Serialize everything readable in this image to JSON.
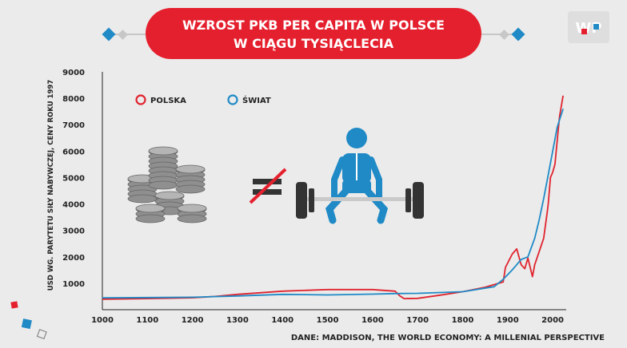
{
  "header": {
    "title_line1": "WZROST PKB PER CAPITA W POLSCE",
    "title_line2": "W CIĄGU TYSIĄCLECIA"
  },
  "brand": {
    "logo_text": "WP",
    "color": "#e5202e"
  },
  "source": "DANE: MADDISON, THE WORLD ECONOMY: A MILLENIAL PERSPECTIVE",
  "icons": [
    "coins-stack-icon",
    "not-equal-icon",
    "weightlifter-icon"
  ],
  "chart_data": {
    "type": "line",
    "ylabel": "USD WG. PARYTETU SIŁY NABYWCZEJ, CENY ROKU 1997",
    "xlim": [
      1000,
      2030
    ],
    "ylim": [
      0,
      9000
    ],
    "xticks": [
      1000,
      1100,
      1200,
      1300,
      1400,
      1500,
      1600,
      1700,
      1800,
      1900,
      2000
    ],
    "yticks": [
      1000,
      2000,
      3000,
      4000,
      5000,
      6000,
      7000,
      8000,
      9000
    ],
    "grid": false,
    "legend_placement": "top-left",
    "series": [
      {
        "name": "POLSKA",
        "color": "#e0232e",
        "points": [
          [
            1000,
            400
          ],
          [
            1100,
            420
          ],
          [
            1200,
            450
          ],
          [
            1250,
            500
          ],
          [
            1300,
            580
          ],
          [
            1400,
            700
          ],
          [
            1500,
            760
          ],
          [
            1600,
            760
          ],
          [
            1650,
            700
          ],
          [
            1660,
            530
          ],
          [
            1670,
            420
          ],
          [
            1700,
            430
          ],
          [
            1750,
            550
          ],
          [
            1800,
            680
          ],
          [
            1850,
            850
          ],
          [
            1890,
            1050
          ],
          [
            1895,
            1600
          ],
          [
            1910,
            2100
          ],
          [
            1920,
            2300
          ],
          [
            1930,
            1700
          ],
          [
            1938,
            1550
          ],
          [
            1945,
            1950
          ],
          [
            1955,
            1250
          ],
          [
            1960,
            1700
          ],
          [
            1970,
            2200
          ],
          [
            1980,
            2700
          ],
          [
            1988,
            3700
          ],
          [
            1990,
            4000
          ],
          [
            1995,
            5000
          ],
          [
            2000,
            5200
          ],
          [
            2005,
            5500
          ],
          [
            2015,
            7300
          ],
          [
            2023,
            8100
          ]
        ]
      },
      {
        "name": "ŚWIAT",
        "color": "#1f8ac6",
        "points": [
          [
            1000,
            450
          ],
          [
            1100,
            460
          ],
          [
            1200,
            470
          ],
          [
            1300,
            520
          ],
          [
            1400,
            580
          ],
          [
            1500,
            560
          ],
          [
            1600,
            590
          ],
          [
            1650,
            610
          ],
          [
            1700,
            620
          ],
          [
            1800,
            680
          ],
          [
            1870,
            870
          ],
          [
            1890,
            1150
          ],
          [
            1910,
            1500
          ],
          [
            1930,
            1900
          ],
          [
            1945,
            2000
          ],
          [
            1960,
            2700
          ],
          [
            1970,
            3400
          ],
          [
            1980,
            4200
          ],
          [
            1990,
            5100
          ],
          [
            2000,
            6000
          ],
          [
            2010,
            6900
          ],
          [
            2023,
            7600
          ]
        ]
      }
    ]
  }
}
